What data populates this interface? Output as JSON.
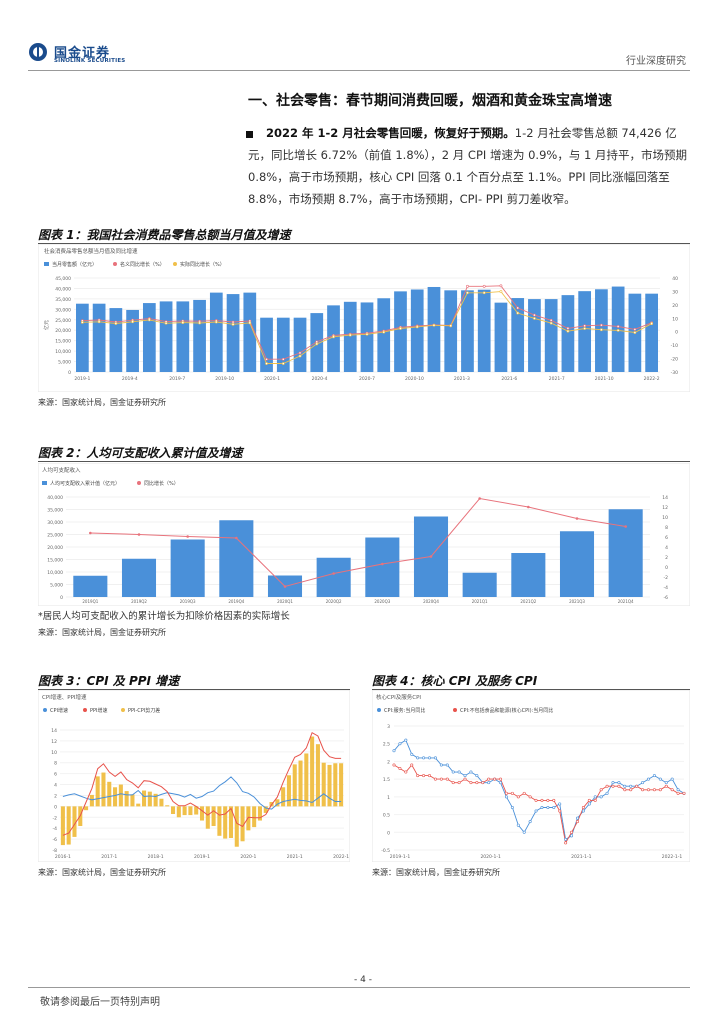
{
  "header": {
    "brand_cn": "国金证券",
    "brand_en": "SINOLINK SECURITIES",
    "report_type": "行业深度研究"
  },
  "section": {
    "title": "一、社会零售：春节期间消费回暖，烟酒和黄金珠宝高增速"
  },
  "paragraph": {
    "lead": "2022 年 1-2 月社会零售回暖，恢复好于预期。",
    "body": "1-2 月社会零售总额 74,426 亿元，同比增长 6.72%（前值 1.8%），2 月 CPI 增速为 0.9%，与 1 月持平，市场预期 0.8%，高于市场预期，核心 CPI 回落 0.1 个百分点至 1.1%。PPI 同比涨幅回落至 8.8%，市场预期 8.7%，高于市场预期，CPI- PPI 剪刀差收窄。"
  },
  "figures": {
    "fig1": {
      "title": "图表 1：我国社会消费品零售总额当月值及增速",
      "source": "来源：国家统计局，国金证券研究所"
    },
    "fig2": {
      "title": "图表 2：人均可支配收入累计值及增速",
      "note": "*居民人均可支配收入的累计增长为扣除价格因素的实际增长",
      "source": "来源：国家统计局，国金证券研究所"
    },
    "fig3": {
      "title": "图表 3：CPI 及 PPI 增速",
      "source": "来源：国家统计局，国金证券研究所"
    },
    "fig4": {
      "title": "图表 4：核心 CPI 及服务 CPI",
      "source": "来源：国家统计局，国金证券研究所"
    }
  },
  "footer": {
    "page": "- 4 -",
    "disclaimer": "敬请参阅最后一页特别声明"
  },
  "chart_data": [
    {
      "id": "fig1",
      "type": "bar",
      "title": "社会消费品零售总额当月值及同比增速",
      "legend": [
        "当月零售额（亿元）",
        "名义同比增长（%）",
        "实际同比增长（%）"
      ],
      "colors": {
        "bar": "#4a90d9",
        "nominal": "#e8737c",
        "real": "#f0c04a"
      },
      "ylabel_left": "亿元",
      "ylim_left": [
        0,
        45000
      ],
      "yticks_left": [
        "0",
        "5,000",
        "10,000",
        "15,000",
        "20,000",
        "25,000",
        "30,000",
        "35,000",
        "40,000",
        "45,000"
      ],
      "ylim_right": [
        -30,
        40
      ],
      "yticks_right": [
        "-30",
        "-20",
        "-10",
        "0",
        "10",
        "20",
        "30",
        "40"
      ],
      "xticks": [
        "2019-1",
        "2019-4",
        "2019-7",
        "2019-10",
        "2020-1",
        "2020-4",
        "2020-7",
        "2020-10",
        "2021-3",
        "2021-6",
        "2021-7",
        "2021-10",
        "2022-2"
      ],
      "values": [
        32700,
        32700,
        30600,
        29700,
        33000,
        33800,
        33800,
        34500,
        38000,
        37300,
        38000,
        26000,
        26000,
        26000,
        28200,
        31900,
        33600,
        33300,
        35300,
        38600,
        39500,
        40700,
        39100,
        39100,
        39400,
        33200,
        35400,
        34900,
        34900,
        36800,
        38700,
        39600,
        40900,
        37500,
        37500
      ],
      "nominal": [
        8.2,
        8.7,
        7.2,
        8.6,
        9.8,
        7.5,
        8.0,
        7.8,
        8.3,
        7.2,
        8.0,
        -20.5,
        -20.5,
        -15.8,
        -7.5,
        -2.8,
        -1.8,
        -1.1,
        0.5,
        3.3,
        4.3,
        5.0,
        4.6,
        33.8,
        33.8,
        34.2,
        17.7,
        12.4,
        8.5,
        2.5,
        4.4,
        4.9,
        3.9,
        1.7,
        6.7
      ],
      "real": [
        7.0,
        7.4,
        6.1,
        7.4,
        8.8,
        6.3,
        6.8,
        6.5,
        7.2,
        5.5,
        6.6,
        -23.7,
        -23.7,
        -18.1,
        -9.1,
        -3.8,
        -2.5,
        -1.9,
        -0.3,
        2.4,
        3.6,
        4.8,
        4.4,
        29.0,
        29.0,
        29.9,
        13.9,
        9.9,
        6.4,
        0.4,
        2.4,
        1.5,
        1.0,
        -0.6,
        6.0
      ]
    },
    {
      "id": "fig2",
      "type": "bar",
      "title": "人均可支配收入",
      "legend": [
        "人均可支配收入累计值（亿元）",
        "同比增长（%）"
      ],
      "colors": {
        "bar": "#4a90d9",
        "line": "#e8737c"
      },
      "categories": [
        "2019Q1",
        "2019Q2",
        "2019Q3",
        "2019Q4",
        "2020Q1",
        "2020Q2",
        "2020Q3",
        "2020Q4",
        "2021Q1",
        "2021Q2",
        "2021Q3",
        "2021Q4"
      ],
      "values": [
        8500,
        15300,
        23000,
        30700,
        8600,
        15700,
        23800,
        32200,
        9700,
        17600,
        26300,
        35100
      ],
      "growth": [
        6.8,
        6.5,
        6.1,
        5.8,
        -3.9,
        -1.3,
        0.6,
        2.1,
        13.7,
        12.0,
        9.7,
        8.1
      ],
      "ylim_left": [
        0,
        40000
      ],
      "yticks_left": [
        "0",
        "5,000",
        "10,000",
        "15,000",
        "20,000",
        "25,000",
        "30,000",
        "35,000",
        "40,000"
      ],
      "ylim_right": [
        -6,
        14
      ],
      "yticks_right": [
        "-6",
        "-4",
        "-2",
        "0",
        "2",
        "4",
        "6",
        "8",
        "10",
        "12",
        "14"
      ]
    },
    {
      "id": "fig3",
      "type": "bar",
      "title": "CPI增速、PPI增速",
      "legend": [
        "CPI增速",
        "PPI增速",
        "PPI-CPI剪刀差"
      ],
      "colors": {
        "cpi": "#4a90d9",
        "ppi": "#e8534c",
        "gap": "#f0c04a"
      },
      "ylim": [
        -8,
        14
      ],
      "yticks": [
        "-8",
        "-6",
        "-4",
        "-2",
        "0",
        "2",
        "4",
        "6",
        "8",
        "10",
        "12",
        "14"
      ],
      "xticks": [
        "2016-1",
        "2017-1",
        "2018-1",
        "2019-1",
        "2020-1",
        "2021-1",
        "2022-1"
      ],
      "cpi": [
        1.8,
        2.1,
        2.3,
        1.9,
        1.5,
        1.2,
        1.4,
        1.6,
        1.8,
        2.0,
        2.3,
        2.1,
        2.1,
        2.9,
        1.8,
        1.9,
        1.8,
        2.2,
        2.5,
        2.3,
        2.1,
        1.7,
        2.2,
        1.5,
        1.8,
        2.5,
        2.8,
        3.8,
        4.5,
        5.4,
        4.3,
        2.7,
        2.4,
        1.7,
        0.5,
        -0.3,
        -0.5,
        0.4,
        0.9,
        1.1,
        1.3,
        1.1,
        1.0,
        0.7,
        1.5,
        2.3,
        1.5,
        0.9,
        0.9
      ],
      "ppi": [
        -5.3,
        -4.9,
        -3.3,
        -1.7,
        0.8,
        3.3,
        6.9,
        7.8,
        6.3,
        5.5,
        6.3,
        4.9,
        4.3,
        3.4,
        4.7,
        4.6,
        4.1,
        3.6,
        2.7,
        0.9,
        0.1,
        0.1,
        0.6,
        0.0,
        -0.8,
        -1.6,
        -0.8,
        -1.6,
        -1.4,
        -0.4,
        -3.1,
        -3.7,
        -2.0,
        -2.1,
        -2.1,
        -1.5,
        0.3,
        1.7,
        4.4,
        6.8,
        9.0,
        9.5,
        10.7,
        13.5,
        12.9,
        10.3,
        9.1,
        8.8,
        8.8
      ],
      "gap": [
        -7.1,
        -7.0,
        -5.6,
        -3.6,
        -0.7,
        2.1,
        5.5,
        6.2,
        4.5,
        3.5,
        4.0,
        2.8,
        2.2,
        0.5,
        2.9,
        2.7,
        2.3,
        1.4,
        0.2,
        -1.4,
        -2.0,
        -1.6,
        -1.6,
        -1.5,
        -2.6,
        -4.1,
        -3.6,
        -5.4,
        -5.9,
        -5.8,
        -7.4,
        -6.4,
        -4.4,
        -3.8,
        -2.6,
        -1.2,
        0.8,
        1.3,
        3.5,
        5.7,
        7.7,
        8.4,
        9.7,
        12.8,
        11.4,
        8.0,
        7.6,
        7.9,
        7.9
      ]
    },
    {
      "id": "fig4",
      "type": "line",
      "title": "核心CPI及服务CPI",
      "legend": [
        "CPI:服务:当月同比",
        "CPI:不包括食品和能源(核心CPI):当月同比"
      ],
      "colors": {
        "service": "#4a90d9",
        "core": "#e8534c"
      },
      "ylim": [
        -0.5,
        3.0
      ],
      "yticks": [
        "-0.5",
        "0",
        "0.5",
        "1",
        "1.5",
        "2",
        "2.5",
        "3"
      ],
      "xticks": [
        "2019-1-1",
        "2020-1-1",
        "2021-1-1",
        "2022-1-1"
      ],
      "service": [
        2.3,
        2.5,
        2.6,
        2.2,
        2.1,
        2.1,
        2.1,
        2.1,
        1.9,
        1.9,
        1.7,
        1.7,
        1.6,
        1.7,
        1.6,
        1.4,
        1.4,
        1.5,
        1.4,
        1.0,
        0.7,
        0.2,
        0.0,
        0.3,
        0.6,
        0.7,
        0.7,
        0.7,
        0.8,
        -0.2,
        -0.1,
        0.4,
        0.6,
        0.8,
        1.0,
        1.0,
        1.1,
        1.4,
        1.4,
        1.3,
        1.3,
        1.3,
        1.4,
        1.5,
        1.6,
        1.5,
        1.4,
        1.5,
        1.2,
        1.1
      ],
      "core": [
        1.9,
        1.8,
        1.7,
        1.9,
        1.6,
        1.6,
        1.6,
        1.5,
        1.5,
        1.5,
        1.4,
        1.4,
        1.5,
        1.4,
        1.4,
        1.4,
        1.5,
        1.5,
        1.5,
        1.1,
        1.1,
        1.0,
        1.1,
        1.0,
        0.9,
        0.9,
        0.9,
        0.9,
        0.6,
        -0.3,
        0.0,
        0.3,
        0.7,
        0.9,
        0.9,
        1.2,
        1.3,
        1.3,
        1.3,
        1.2,
        1.2,
        1.3,
        1.2,
        1.2,
        1.2,
        1.2,
        1.3,
        1.2,
        1.1,
        1.1
      ]
    }
  ]
}
